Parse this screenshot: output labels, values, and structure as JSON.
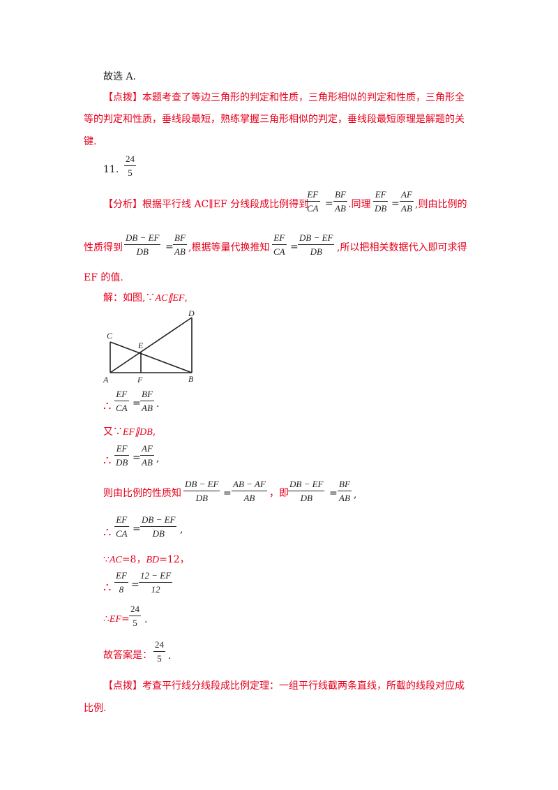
{
  "conclusion": "故选 A.",
  "tip1": {
    "tag": "【点拨】",
    "line1": "本题考查了等边三角形的判定和性质，三角形相似的判定和性质，三角形全",
    "line2": "等的判定和性质，垂线段最短，熟练掌握三角形相似的判定，垂线段最短原理是解题的关",
    "line3": "键."
  },
  "q11": {
    "number": "11.",
    "answer_num": "24",
    "answer_den": "5"
  },
  "analysis": {
    "tag": "【分析】",
    "text1": "根据平行线 AC∥EF 分线段成比例得到",
    "f1": {
      "num": "EF",
      "den": "CA"
    },
    "f2": {
      "num": "BF",
      "den": "AB"
    },
    "text2": ".同理",
    "f3": {
      "num": "EF",
      "den": "DB"
    },
    "f4": {
      "num": "AF",
      "den": "AB"
    },
    "text3": ",则由比例的",
    "text4": "性质得到",
    "f5": {
      "num": "DB − EF",
      "den": "DB"
    },
    "f6": {
      "num": "BF",
      "den": "AB"
    },
    "text5": ",根据等量代换推知",
    "f7": {
      "num": "EF",
      "den": "CA"
    },
    "f8": {
      "num": "DB − EF",
      "den": "DB"
    },
    "text6": ",所以把相关数据代入即可求得",
    "text7": "EF 的值."
  },
  "solution": {
    "intro": "解：如图,∵",
    "intro_math": "AC∥EF",
    "intro_end": ",",
    "figure": {
      "labels": [
        "C",
        "E",
        "D",
        "A",
        "F",
        "B"
      ]
    },
    "step1": {
      "sym": "∴",
      "f1": {
        "num": "EF",
        "den": "CA"
      },
      "f2": {
        "num": "BF",
        "den": "AB"
      },
      "end": "."
    },
    "step2": {
      "text": "又∵",
      "math": "EF∥DB",
      "end": ","
    },
    "step3": {
      "sym": "∴",
      "f1": {
        "num": "EF",
        "den": "DB"
      },
      "f2": {
        "num": "AF",
        "den": "AB"
      },
      "end": ","
    },
    "step4": {
      "text": "则由比例的性质知",
      "f1": {
        "num": "DB − EF",
        "den": "DB"
      },
      "f2": {
        "num": "AB − AF",
        "den": "AB"
      },
      "mid": "，即",
      "f3": {
        "num": "DB − EF",
        "den": "DB"
      },
      "f4": {
        "num": "BF",
        "den": "AB"
      },
      "end": ","
    },
    "step5": {
      "sym": "∴",
      "f1": {
        "num": "EF",
        "den": "CA"
      },
      "f2": {
        "num": "DB − EF",
        "den": "DB"
      },
      "end": ","
    },
    "step6": {
      "sym": "∵",
      "t1": "AC",
      "v1": "=8，",
      "t2": "BD",
      "v2": "=12，"
    },
    "step7": {
      "sym": "∴",
      "f1": {
        "num": "EF",
        "den": "8"
      },
      "f2": {
        "num": "12 − EF",
        "den": "12"
      }
    },
    "step8": {
      "sym": "∴",
      "t1": "EF",
      "eq": "=",
      "f1": {
        "num": "24",
        "den": "5"
      },
      "end": "."
    },
    "answer": {
      "text": "故答案是：",
      "f1": {
        "num": "24",
        "den": "5"
      },
      "end": "."
    }
  },
  "tip2": {
    "tag": "【点拨】",
    "line1": "考查平行线分线段成比例定理：一组平行线截两条直线，所截的线段对应成",
    "line2": "比例."
  },
  "eq": "="
}
